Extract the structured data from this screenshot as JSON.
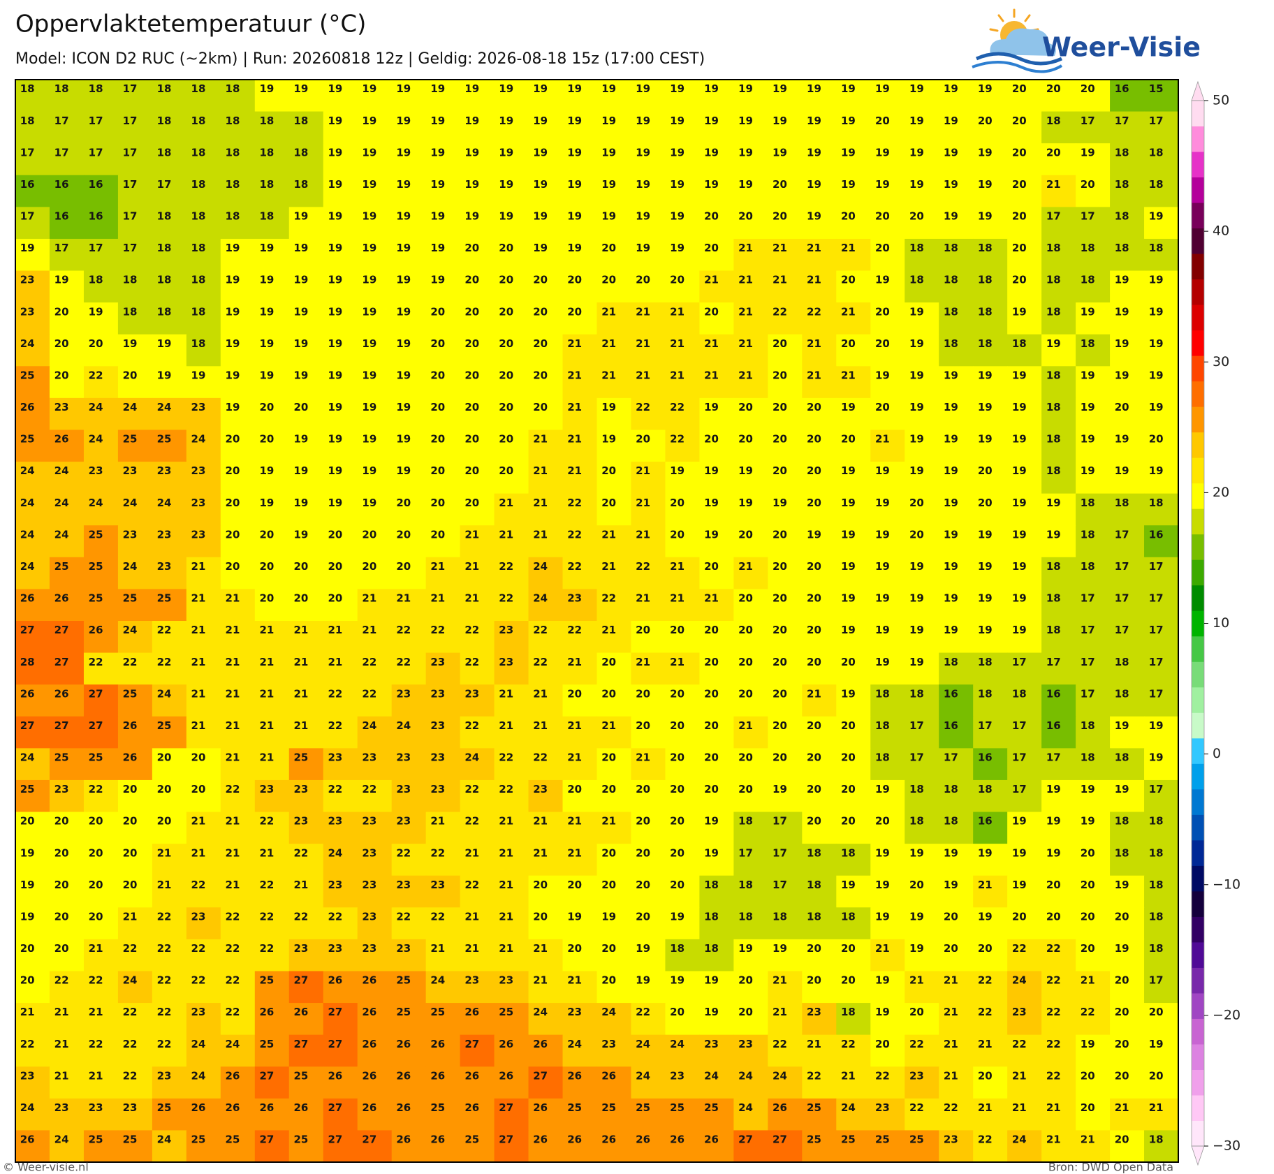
{
  "header": {
    "title": "Oppervlaktetemperatuur (°C)",
    "subtitle": "Model: ICON D2 RUC (~2km)  |  Run: 20260818 12z  |  Geldig: 2026-08-18 15z (17:00 CEST)"
  },
  "logo": {
    "text": "Weer-Visie"
  },
  "map": {
    "type": "grid",
    "rows": [
      [
        18,
        18,
        18,
        17,
        18,
        18,
        18,
        19,
        19,
        19,
        19,
        19,
        19,
        19,
        19,
        19,
        19,
        19,
        19,
        19,
        19,
        19,
        19,
        19,
        19,
        19,
        19,
        19,
        19,
        20,
        20,
        20,
        16,
        15
      ],
      [
        18,
        17,
        17,
        17,
        18,
        18,
        18,
        18,
        18,
        19,
        19,
        19,
        19,
        19,
        19,
        19,
        19,
        19,
        19,
        19,
        19,
        19,
        19,
        19,
        19,
        20,
        19,
        19,
        20,
        20,
        18,
        17,
        17,
        17
      ],
      [
        17,
        17,
        17,
        17,
        18,
        18,
        18,
        18,
        18,
        19,
        19,
        19,
        19,
        19,
        19,
        19,
        19,
        19,
        19,
        19,
        19,
        19,
        19,
        19,
        19,
        19,
        19,
        19,
        19,
        20,
        20,
        19,
        18,
        18
      ],
      [
        16,
        16,
        16,
        17,
        17,
        18,
        18,
        18,
        18,
        19,
        19,
        19,
        19,
        19,
        19,
        19,
        19,
        19,
        19,
        19,
        19,
        19,
        20,
        19,
        19,
        19,
        19,
        19,
        19,
        20,
        21,
        20,
        18,
        18
      ],
      [
        17,
        16,
        16,
        17,
        18,
        18,
        18,
        18,
        19,
        19,
        19,
        19,
        19,
        19,
        19,
        19,
        19,
        19,
        19,
        19,
        20,
        20,
        20,
        19,
        20,
        20,
        20,
        19,
        19,
        20,
        17,
        17,
        18,
        19
      ],
      [
        19,
        17,
        17,
        17,
        18,
        18,
        19,
        19,
        19,
        19,
        19,
        19,
        19,
        20,
        20,
        19,
        19,
        20,
        19,
        19,
        20,
        21,
        21,
        21,
        21,
        20,
        18,
        18,
        18,
        20,
        18,
        18,
        18,
        18
      ],
      [
        23,
        19,
        18,
        18,
        18,
        18,
        19,
        19,
        19,
        19,
        19,
        19,
        19,
        20,
        20,
        20,
        20,
        20,
        20,
        20,
        21,
        21,
        21,
        21,
        20,
        19,
        18,
        18,
        18,
        20,
        18,
        18,
        19,
        19
      ],
      [
        23,
        20,
        19,
        18,
        18,
        18,
        19,
        19,
        19,
        19,
        19,
        19,
        20,
        20,
        20,
        20,
        20,
        21,
        21,
        21,
        20,
        21,
        22,
        22,
        21,
        20,
        19,
        18,
        18,
        19,
        18,
        19,
        19,
        19
      ],
      [
        24,
        20,
        20,
        19,
        19,
        18,
        19,
        19,
        19,
        19,
        19,
        19,
        20,
        20,
        20,
        20,
        21,
        21,
        21,
        21,
        21,
        21,
        20,
        21,
        20,
        20,
        19,
        18,
        18,
        18,
        19,
        18,
        19,
        19
      ],
      [
        25,
        20,
        22,
        20,
        19,
        19,
        19,
        19,
        19,
        19,
        19,
        19,
        20,
        20,
        20,
        20,
        21,
        21,
        21,
        21,
        21,
        21,
        20,
        21,
        21,
        19,
        19,
        19,
        19,
        19,
        18,
        19,
        19,
        19
      ],
      [
        26,
        23,
        24,
        24,
        24,
        23,
        19,
        20,
        20,
        19,
        19,
        19,
        20,
        20,
        20,
        20,
        21,
        19,
        22,
        22,
        19,
        20,
        20,
        20,
        19,
        20,
        19,
        19,
        19,
        19,
        18,
        19,
        20,
        19
      ],
      [
        25,
        26,
        24,
        25,
        25,
        24,
        20,
        20,
        19,
        19,
        19,
        19,
        20,
        20,
        20,
        21,
        21,
        19,
        20,
        22,
        20,
        20,
        20,
        20,
        20,
        21,
        19,
        19,
        19,
        19,
        18,
        19,
        19,
        20
      ],
      [
        24,
        24,
        23,
        23,
        23,
        23,
        20,
        19,
        19,
        19,
        19,
        19,
        20,
        20,
        20,
        21,
        21,
        20,
        21,
        19,
        19,
        19,
        20,
        20,
        19,
        19,
        19,
        19,
        20,
        19,
        18,
        19,
        19,
        19
      ],
      [
        24,
        24,
        24,
        24,
        24,
        23,
        20,
        19,
        19,
        19,
        19,
        20,
        20,
        20,
        21,
        21,
        22,
        20,
        21,
        20,
        19,
        19,
        19,
        20,
        19,
        19,
        20,
        19,
        20,
        19,
        19,
        18,
        18,
        18
      ],
      [
        24,
        24,
        25,
        23,
        23,
        23,
        20,
        20,
        19,
        20,
        20,
        20,
        20,
        21,
        21,
        21,
        22,
        21,
        21,
        20,
        19,
        20,
        20,
        19,
        19,
        19,
        20,
        19,
        19,
        19,
        19,
        18,
        17,
        16
      ],
      [
        24,
        25,
        25,
        24,
        23,
        21,
        20,
        20,
        20,
        20,
        20,
        20,
        21,
        21,
        22,
        24,
        22,
        21,
        22,
        21,
        20,
        21,
        20,
        20,
        19,
        19,
        19,
        19,
        19,
        19,
        18,
        18,
        17,
        17
      ],
      [
        26,
        26,
        25,
        25,
        25,
        21,
        21,
        20,
        20,
        20,
        21,
        21,
        21,
        21,
        22,
        24,
        23,
        22,
        21,
        21,
        21,
        20,
        20,
        20,
        19,
        19,
        19,
        19,
        19,
        19,
        18,
        17,
        17,
        17
      ],
      [
        27,
        27,
        26,
        24,
        22,
        21,
        21,
        21,
        21,
        21,
        21,
        22,
        22,
        22,
        23,
        22,
        22,
        21,
        20,
        20,
        20,
        20,
        20,
        20,
        19,
        19,
        19,
        19,
        19,
        19,
        18,
        17,
        17,
        17
      ],
      [
        28,
        27,
        22,
        22,
        22,
        21,
        21,
        21,
        21,
        21,
        22,
        22,
        23,
        22,
        23,
        22,
        21,
        20,
        21,
        21,
        20,
        20,
        20,
        20,
        20,
        19,
        19,
        18,
        18,
        17,
        17,
        17,
        18,
        17
      ],
      [
        26,
        26,
        27,
        25,
        24,
        21,
        21,
        21,
        21,
        22,
        22,
        23,
        23,
        23,
        21,
        21,
        20,
        20,
        20,
        20,
        20,
        20,
        20,
        21,
        19,
        18,
        18,
        16,
        18,
        18,
        16,
        17,
        18,
        17
      ],
      [
        27,
        27,
        27,
        26,
        25,
        21,
        21,
        21,
        21,
        22,
        24,
        24,
        23,
        22,
        21,
        21,
        21,
        21,
        20,
        20,
        20,
        21,
        20,
        20,
        20,
        18,
        17,
        16,
        17,
        17,
        16,
        18,
        19,
        19
      ],
      [
        24,
        25,
        25,
        26,
        20,
        20,
        21,
        21,
        25,
        23,
        23,
        23,
        23,
        24,
        22,
        22,
        21,
        20,
        21,
        20,
        20,
        20,
        20,
        20,
        20,
        18,
        17,
        17,
        16,
        17,
        17,
        18,
        18,
        19
      ],
      [
        25,
        23,
        22,
        20,
        20,
        20,
        22,
        23,
        23,
        22,
        22,
        23,
        23,
        22,
        22,
        23,
        20,
        20,
        20,
        20,
        20,
        20,
        19,
        20,
        20,
        19,
        18,
        18,
        18,
        17,
        19,
        19,
        19,
        17
      ],
      [
        20,
        20,
        20,
        20,
        20,
        21,
        21,
        22,
        23,
        23,
        23,
        23,
        21,
        22,
        21,
        21,
        21,
        21,
        20,
        20,
        19,
        18,
        17,
        20,
        20,
        20,
        18,
        18,
        16,
        19,
        19,
        19,
        18,
        18
      ],
      [
        19,
        20,
        20,
        20,
        21,
        21,
        21,
        21,
        22,
        24,
        23,
        22,
        22,
        21,
        21,
        21,
        21,
        20,
        20,
        20,
        19,
        17,
        17,
        18,
        18,
        19,
        19,
        19,
        19,
        19,
        19,
        20,
        18,
        18
      ],
      [
        19,
        20,
        20,
        20,
        21,
        22,
        21,
        22,
        21,
        23,
        23,
        23,
        23,
        22,
        21,
        20,
        20,
        20,
        20,
        20,
        18,
        18,
        17,
        18,
        19,
        19,
        20,
        19,
        21,
        19,
        20,
        20,
        19,
        18
      ],
      [
        19,
        20,
        20,
        21,
        22,
        23,
        22,
        22,
        22,
        22,
        23,
        22,
        22,
        21,
        21,
        20,
        19,
        19,
        20,
        19,
        18,
        18,
        18,
        18,
        18,
        19,
        19,
        20,
        19,
        20,
        20,
        20,
        20,
        18
      ],
      [
        20,
        20,
        21,
        22,
        22,
        22,
        22,
        22,
        23,
        23,
        23,
        23,
        21,
        21,
        21,
        21,
        20,
        20,
        19,
        18,
        18,
        19,
        19,
        20,
        20,
        21,
        19,
        20,
        20,
        22,
        22,
        20,
        19,
        18
      ],
      [
        20,
        22,
        22,
        24,
        22,
        22,
        22,
        25,
        27,
        26,
        26,
        25,
        24,
        23,
        23,
        21,
        21,
        20,
        19,
        19,
        19,
        20,
        21,
        20,
        20,
        19,
        21,
        21,
        22,
        24,
        22,
        21,
        20,
        17
      ],
      [
        21,
        21,
        21,
        22,
        22,
        23,
        22,
        26,
        26,
        27,
        26,
        25,
        25,
        26,
        25,
        24,
        23,
        24,
        22,
        20,
        19,
        20,
        21,
        23,
        18,
        19,
        20,
        21,
        22,
        23,
        22,
        22,
        20,
        20
      ],
      [
        22,
        21,
        22,
        22,
        22,
        24,
        24,
        25,
        27,
        27,
        26,
        26,
        26,
        27,
        26,
        26,
        24,
        23,
        24,
        24,
        23,
        23,
        22,
        21,
        22,
        20,
        22,
        21,
        21,
        22,
        22,
        19,
        20,
        19
      ],
      [
        23,
        21,
        21,
        22,
        23,
        24,
        26,
        27,
        25,
        26,
        26,
        26,
        26,
        26,
        26,
        27,
        26,
        26,
        24,
        23,
        24,
        24,
        24,
        22,
        21,
        22,
        23,
        21,
        20,
        21,
        22,
        20,
        20,
        20
      ],
      [
        24,
        23,
        23,
        23,
        25,
        26,
        26,
        26,
        26,
        27,
        26,
        26,
        25,
        26,
        27,
        26,
        25,
        25,
        25,
        25,
        25,
        24,
        26,
        25,
        24,
        23,
        22,
        22,
        21,
        21,
        21,
        20,
        21,
        21
      ],
      [
        26,
        24,
        25,
        25,
        24,
        25,
        25,
        27,
        25,
        27,
        27,
        26,
        26,
        25,
        27,
        26,
        26,
        26,
        26,
        26,
        26,
        27,
        27,
        25,
        25,
        25,
        25,
        23,
        22,
        24,
        21,
        21,
        20,
        18
      ]
    ]
  },
  "colorbar": {
    "lim": [
      -30,
      50
    ],
    "colors": [
      "#ffe6fa",
      "#ffc8f5",
      "#f0a0eb",
      "#dc82e1",
      "#c864d2",
      "#a046c3",
      "#7828aa",
      "#500a96",
      "#320064",
      "#14003c",
      "#000a64",
      "#002896",
      "#0050b4",
      "#0078d2",
      "#00a0eb",
      "#32c8ff",
      "#c8fac8",
      "#a0f0a0",
      "#78dc78",
      "#46c846",
      "#00b400",
      "#008c00",
      "#3caa00",
      "#78be00",
      "#c8dc00",
      "#ffff00",
      "#ffe600",
      "#ffc800",
      "#ff9600",
      "#ff6e00",
      "#ff4600",
      "#ff0000",
      "#dc0000",
      "#b40000",
      "#820000",
      "#500032",
      "#78005a",
      "#b4009b",
      "#e632c8",
      "#ff8cdc",
      "#ffdcf0"
    ],
    "ticks": [
      50,
      40,
      30,
      20,
      10,
      0,
      {
        "value": -10,
        "label": "−10"
      },
      {
        "value": -20,
        "label": "−20"
      },
      {
        "value": -30,
        "label": "−30"
      }
    ]
  },
  "footer": {
    "left": "© Weer-visie.nl",
    "right": "Bron: DWD Open Data"
  }
}
